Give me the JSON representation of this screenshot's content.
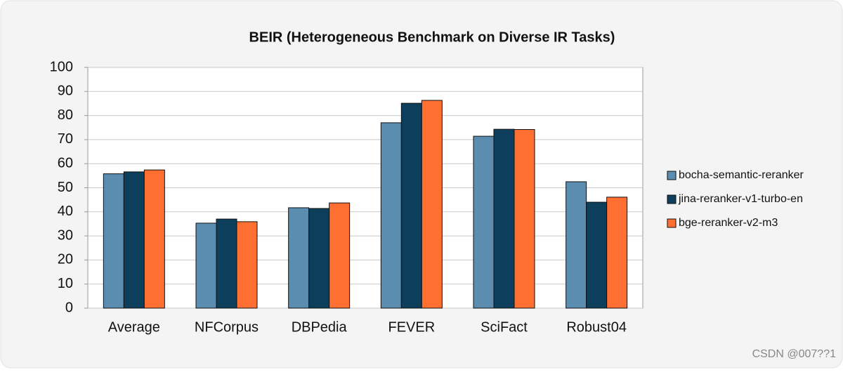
{
  "chart_data": {
    "type": "bar",
    "title": "BEIR (Heterogeneous Benchmark on Diverse IR Tasks)",
    "categories": [
      "Average",
      "NFCorpus",
      "DBPedia",
      "FEVER",
      "SciFact",
      "Robust04"
    ],
    "series": [
      {
        "name": "bocha-semantic-reranker",
        "color": "#5b8db0",
        "values": [
          55.8,
          35.3,
          41.7,
          77.0,
          71.4,
          52.5
        ]
      },
      {
        "name": "jina-reranker-v1-turbo-en",
        "color": "#0d3f5c",
        "values": [
          56.6,
          37.0,
          41.4,
          85.1,
          74.3,
          44.0
        ]
      },
      {
        "name": "bge-reranker-v2-m3",
        "color": "#ff6f31",
        "values": [
          57.4,
          35.9,
          43.7,
          86.3,
          74.2,
          46.1
        ]
      }
    ],
    "ylim": [
      0,
      100
    ],
    "yticks": [
      0,
      10,
      20,
      30,
      40,
      50,
      60,
      70,
      80,
      90,
      100
    ],
    "grid": true,
    "legend": "right",
    "watermark": "CSDN @007??1"
  }
}
